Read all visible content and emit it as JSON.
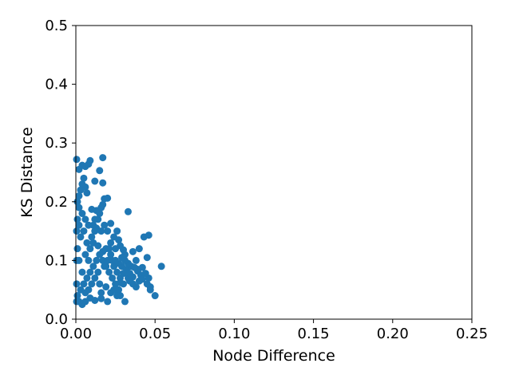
{
  "chart_data": {
    "type": "scatter",
    "title": "",
    "xlabel": "Node Difference",
    "ylabel": "KS Distance",
    "xlim": [
      0.0,
      0.25
    ],
    "ylim": [
      0.0,
      0.5
    ],
    "xticks": [
      "0.00",
      "0.05",
      "0.10",
      "0.15",
      "0.20",
      "0.25"
    ],
    "yticks": [
      "0.0",
      "0.1",
      "0.2",
      "0.3",
      "0.4",
      "0.5"
    ],
    "grid": false,
    "legend": "none",
    "marker_color": "#1f77b4",
    "series": [
      {
        "points": [
          [
            0.0005,
            0.272
          ],
          [
            0.002,
            0.255
          ],
          [
            0.004,
            0.262
          ],
          [
            0.006,
            0.26
          ],
          [
            0.008,
            0.264
          ],
          [
            0.009,
            0.27
          ],
          [
            0.017,
            0.275
          ],
          [
            0.015,
            0.253
          ],
          [
            0.012,
            0.235
          ],
          [
            0.017,
            0.232
          ],
          [
            0.005,
            0.24
          ],
          [
            0.018,
            0.205
          ],
          [
            0.02,
            0.206
          ],
          [
            0.017,
            0.195
          ],
          [
            0.016,
            0.19
          ],
          [
            0.015,
            0.18
          ],
          [
            0.014,
            0.17
          ],
          [
            0.006,
            0.225
          ],
          [
            0.007,
            0.215
          ],
          [
            0.004,
            0.23
          ],
          [
            0.003,
            0.22
          ],
          [
            0.002,
            0.21
          ],
          [
            0.001,
            0.2
          ],
          [
            0.002,
            0.19
          ],
          [
            0.01,
            0.187
          ],
          [
            0.013,
            0.185
          ],
          [
            0.012,
            0.17
          ],
          [
            0.011,
            0.16
          ],
          [
            0.013,
            0.155
          ],
          [
            0.016,
            0.15
          ],
          [
            0.018,
            0.16
          ],
          [
            0.022,
            0.163
          ],
          [
            0.02,
            0.15
          ],
          [
            0.024,
            0.14
          ],
          [
            0.026,
            0.15
          ],
          [
            0.033,
            0.183
          ],
          [
            0.027,
            0.135
          ],
          [
            0.028,
            0.125
          ],
          [
            0.03,
            0.118
          ],
          [
            0.025,
            0.12
          ],
          [
            0.022,
            0.13
          ],
          [
            0.019,
            0.12
          ],
          [
            0.017,
            0.115
          ],
          [
            0.031,
            0.11
          ],
          [
            0.036,
            0.115
          ],
          [
            0.038,
            0.1
          ],
          [
            0.04,
            0.12
          ],
          [
            0.043,
            0.14
          ],
          [
            0.046,
            0.143
          ],
          [
            0.045,
            0.105
          ],
          [
            0.054,
            0.09
          ],
          [
            0.042,
            0.088
          ],
          [
            0.039,
            0.082
          ],
          [
            0.041,
            0.075
          ],
          [
            0.046,
            0.07
          ],
          [
            0.047,
            0.055
          ],
          [
            0.047,
            0.05
          ],
          [
            0.05,
            0.04
          ],
          [
            0.045,
            0.06
          ],
          [
            0.04,
            0.065
          ],
          [
            0.038,
            0.055
          ],
          [
            0.033,
            0.07
          ],
          [
            0.03,
            0.06
          ],
          [
            0.031,
            0.03
          ],
          [
            0.028,
            0.04
          ],
          [
            0.02,
            0.03
          ],
          [
            0.016,
            0.035
          ],
          [
            0.012,
            0.032
          ],
          [
            0.009,
            0.036
          ],
          [
            0.006,
            0.03
          ],
          [
            0.004,
            0.025
          ],
          [
            0.002,
            0.03
          ],
          [
            0.001,
            0.04
          ],
          [
            0.003,
            0.05
          ],
          [
            0.005,
            0.06
          ],
          [
            0.007,
            0.07
          ],
          [
            0.009,
            0.08
          ],
          [
            0.011,
            0.09
          ],
          [
            0.013,
            0.1
          ],
          [
            0.015,
            0.11
          ],
          [
            0.017,
            0.1
          ],
          [
            0.019,
            0.09
          ],
          [
            0.021,
            0.08
          ],
          [
            0.023,
            0.07
          ],
          [
            0.025,
            0.06
          ],
          [
            0.027,
            0.05
          ],
          [
            0.024,
            0.09
          ],
          [
            0.026,
            0.08
          ],
          [
            0.028,
            0.07
          ],
          [
            0.029,
            0.09
          ],
          [
            0.032,
            0.085
          ],
          [
            0.034,
            0.078
          ],
          [
            0.036,
            0.072
          ],
          [
            0.035,
            0.09
          ],
          [
            0.033,
            0.095
          ],
          [
            0.031,
            0.1
          ],
          [
            0.029,
            0.105
          ],
          [
            0.022,
            0.11
          ],
          [
            0.02,
            0.1
          ],
          [
            0.018,
            0.09
          ],
          [
            0.014,
            0.08
          ],
          [
            0.012,
            0.07
          ],
          [
            0.01,
            0.06
          ],
          [
            0.008,
            0.05
          ],
          [
            0.006,
            0.045
          ],
          [
            0.004,
            0.08
          ],
          [
            0.002,
            0.1
          ],
          [
            0.001,
            0.12
          ],
          [
            0.003,
            0.14
          ],
          [
            0.005,
            0.15
          ],
          [
            0.007,
            0.13
          ],
          [
            0.009,
            0.12
          ],
          [
            0.011,
            0.13
          ],
          [
            0.008,
            0.16
          ],
          [
            0.006,
            0.17
          ],
          [
            0.004,
            0.18
          ],
          [
            0.002,
            0.16
          ],
          [
            0.001,
            0.17
          ],
          [
            0.0005,
            0.15
          ],
          [
            0.0005,
            0.1
          ],
          [
            0.0005,
            0.06
          ],
          [
            0.0005,
            0.03
          ],
          [
            0.015,
            0.06
          ],
          [
            0.016,
            0.045
          ],
          [
            0.019,
            0.055
          ],
          [
            0.022,
            0.045
          ],
          [
            0.024,
            0.05
          ],
          [
            0.026,
            0.04
          ],
          [
            0.014,
            0.125
          ],
          [
            0.01,
            0.14
          ],
          [
            0.012,
            0.15
          ],
          [
            0.008,
            0.1
          ],
          [
            0.006,
            0.11
          ],
          [
            0.021,
            0.12
          ],
          [
            0.023,
            0.1
          ],
          [
            0.039,
            0.085
          ],
          [
            0.037,
            0.088
          ],
          [
            0.044,
            0.078
          ],
          [
            0.042,
            0.068
          ],
          [
            0.036,
            0.06
          ],
          [
            0.034,
            0.065
          ],
          [
            0.03,
            0.078
          ],
          [
            0.028,
            0.062
          ],
          [
            0.027,
            0.095
          ],
          [
            0.025,
            0.1
          ]
        ]
      }
    ]
  }
}
